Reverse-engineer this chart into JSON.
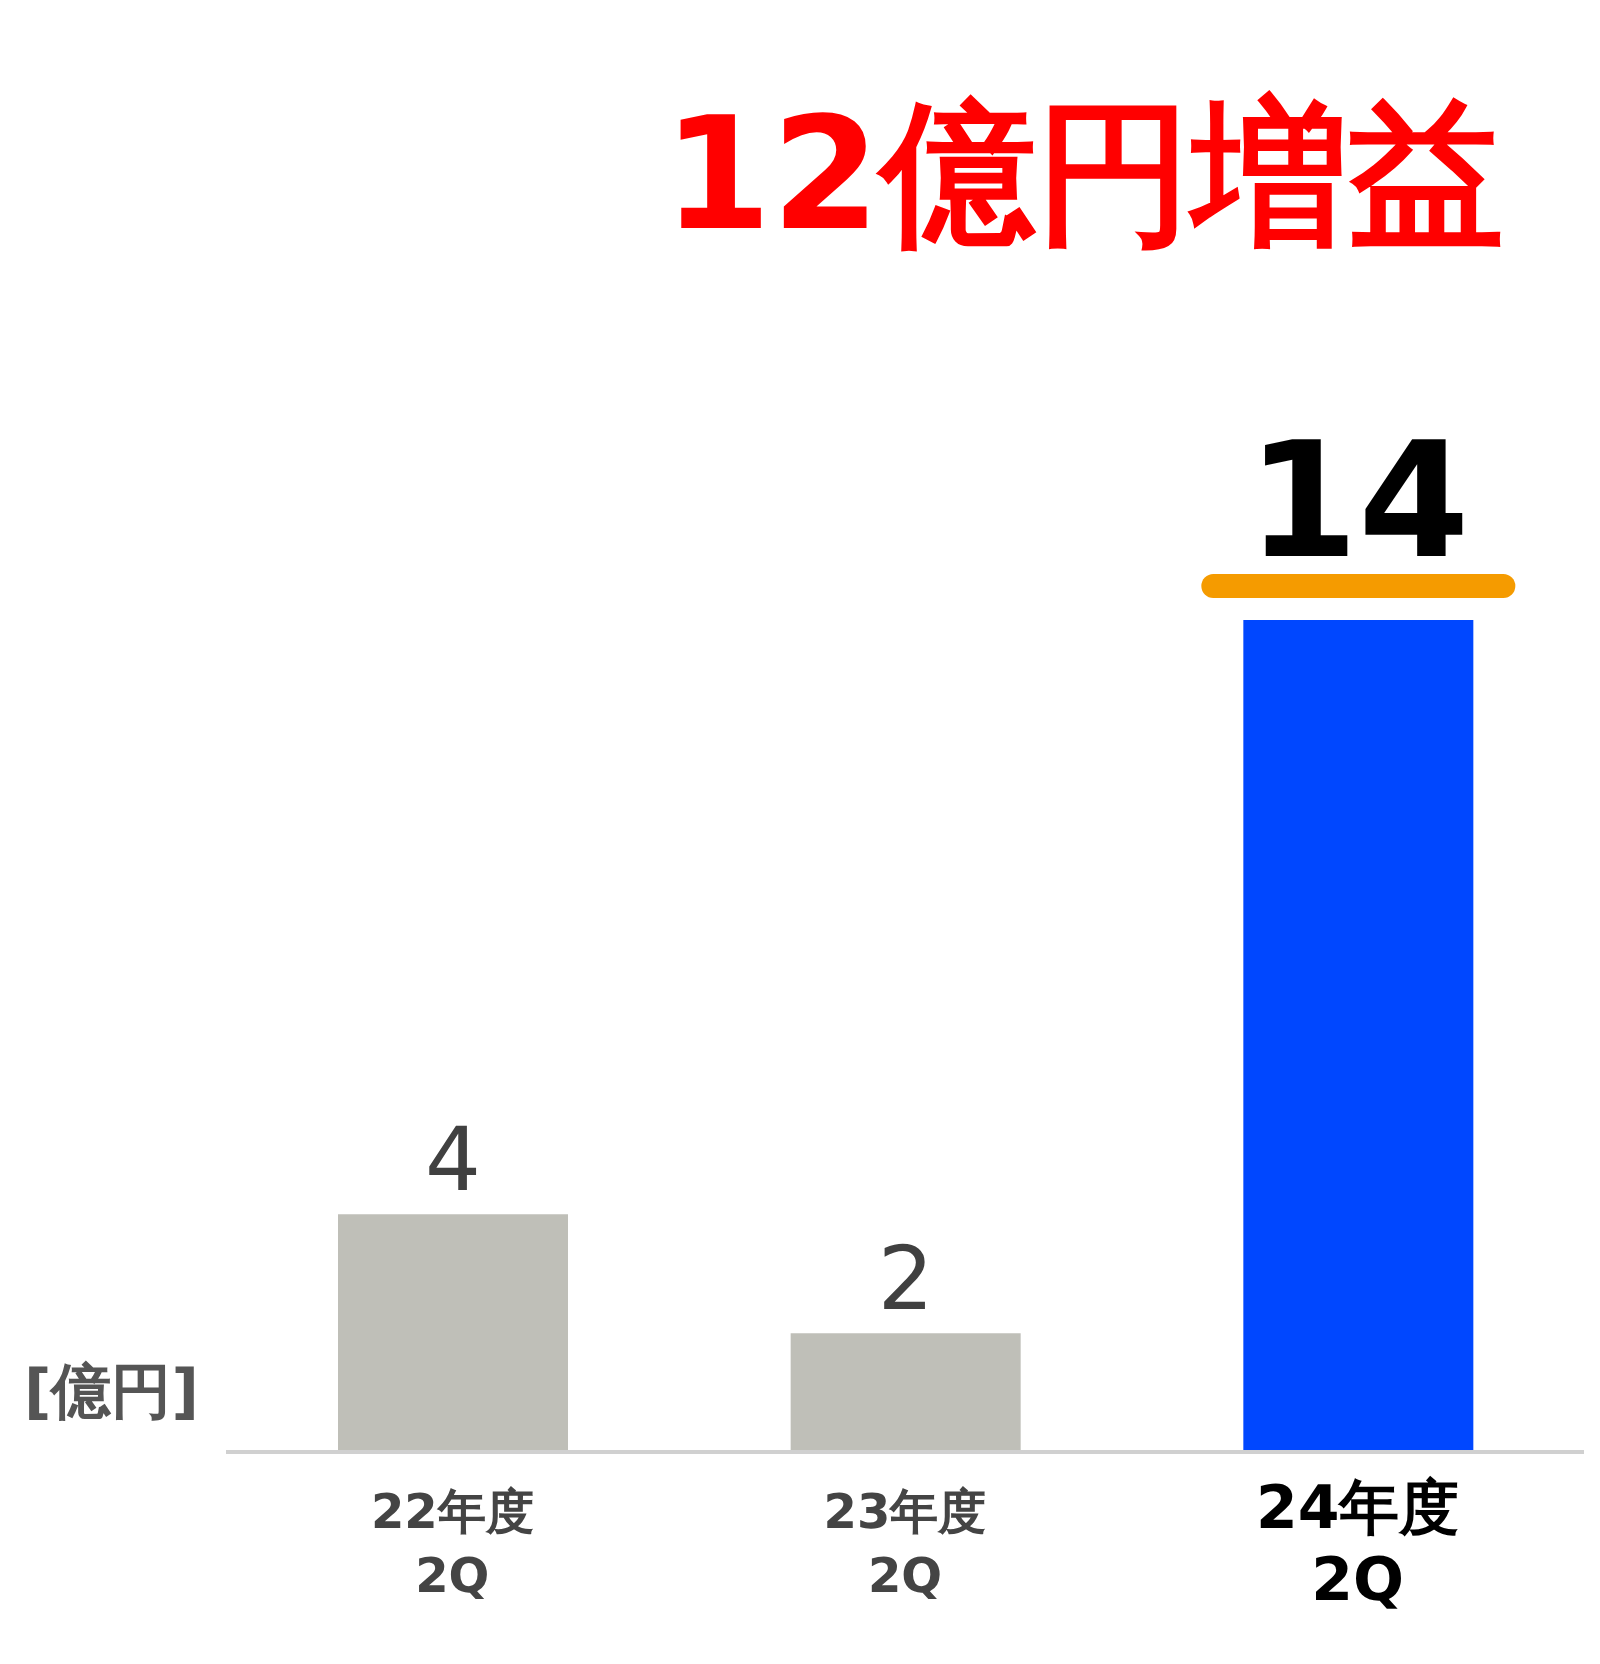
{
  "chart_data": {
    "type": "bar",
    "title": "12億円増益",
    "ylabel": "[億円]",
    "categories": [
      "22年度 2Q",
      "23年度 2Q",
      "24年度 2Q"
    ],
    "values": [
      4,
      2,
      14
    ],
    "colors": [
      "#bfbfb8",
      "#bfbfb8",
      "#0047ff"
    ],
    "data_labels": true,
    "grid": false,
    "legend": false
  }
}
